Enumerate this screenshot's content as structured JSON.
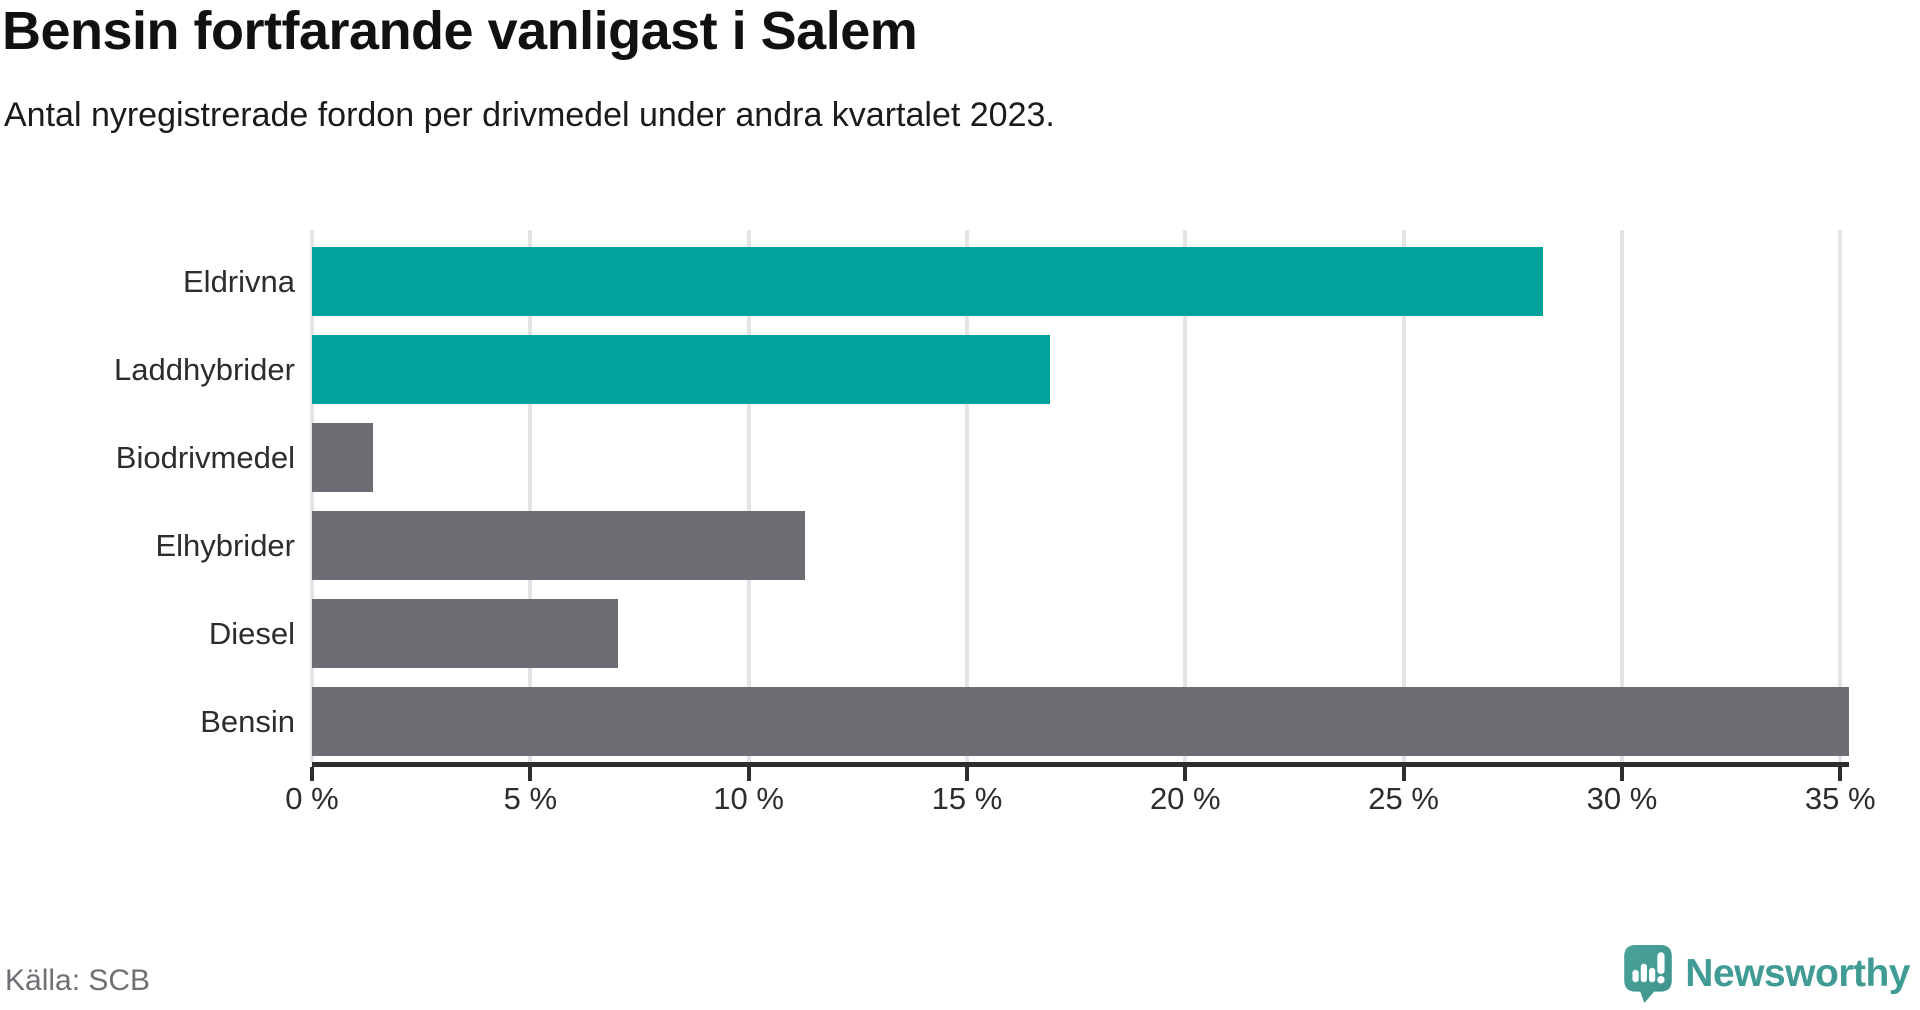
{
  "header": {
    "title": "Bensin fortfarande vanligast i Salem",
    "subtitle": "Antal nyregistrerade fordon per drivmedel under andra kvartalet 2023."
  },
  "chart_data": {
    "type": "bar",
    "orientation": "horizontal",
    "title": "Bensin fortfarande vanligast i Salem",
    "subtitle": "Antal nyregistrerade fordon per drivmedel under andra kvartalet 2023.",
    "categories": [
      "Eldrivna",
      "Laddhybrider",
      "Biodrivmedel",
      "Elhybrider",
      "Diesel",
      "Bensin"
    ],
    "values": [
      28.2,
      16.9,
      1.4,
      11.3,
      7.0,
      35.2
    ],
    "unit": "%",
    "bar_colors": [
      "#00a39b",
      "#00a39b",
      "#6d6d73",
      "#6d6d73",
      "#6d6d73",
      "#6d6d73"
    ],
    "xlabel": "",
    "ylabel": "",
    "xlim": [
      0,
      35.2
    ],
    "x_ticks": [
      0,
      5,
      10,
      15,
      20,
      25,
      30,
      35
    ],
    "x_tick_labels": [
      "0 %",
      "5 %",
      "10 %",
      "15 %",
      "20 %",
      "25 %",
      "30 %",
      "35 %"
    ],
    "grid": true,
    "legend": false
  },
  "footer": {
    "source": "Källa: SCB",
    "brand": "Newsworthy"
  },
  "colors": {
    "accent_teal": "#00a39b",
    "bar_gray": "#6d6d73",
    "gridline": "#e4e4e6",
    "axis": "#2e2e2e",
    "title_text": "#111111",
    "label_text": "#2d2d2d",
    "source_text": "#6f6f75",
    "logo_teal": "#3f9b94"
  }
}
